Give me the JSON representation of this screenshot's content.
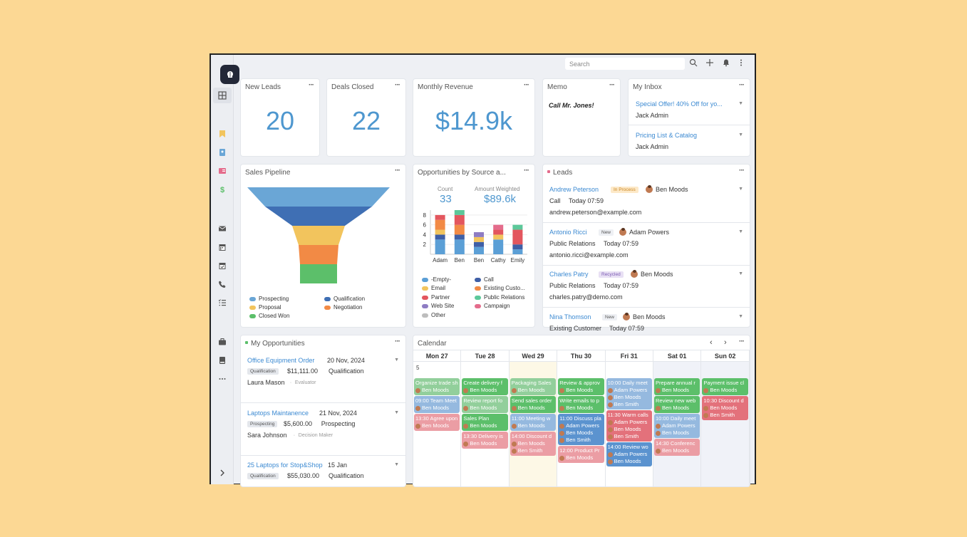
{
  "topbar": {
    "search_placeholder": "Search"
  },
  "kpi": {
    "new_leads": {
      "title": "New Leads",
      "value": "20"
    },
    "deals_closed": {
      "title": "Deals Closed",
      "value": "22"
    },
    "monthly_revenue": {
      "title": "Monthly Revenue",
      "value": "$14.9k"
    }
  },
  "memo": {
    "title": "Memo",
    "text": "Call Mr. Jones!"
  },
  "inbox": {
    "title": "My Inbox",
    "items": [
      {
        "subject": "Special Offer! 40% Off for yo...",
        "from": "Jack Admin"
      },
      {
        "subject": "Pricing List & Catalog",
        "from": "Jack Admin"
      }
    ]
  },
  "pipeline": {
    "title": "Sales Pipeline",
    "legend": [
      "Prospecting",
      "Qualification",
      "Proposal",
      "Negotiation",
      "Closed Won"
    ],
    "colors": [
      "#6aa6d6",
      "#3f6fb4",
      "#f2c45d",
      "#f28a45",
      "#5cbf6a"
    ],
    "widths": [
      100,
      75,
      37,
      28,
      26
    ]
  },
  "opps_source": {
    "title": "Opportunities by Source a...",
    "count_label": "Count",
    "count_value": "33",
    "amount_label": "Amount Weighted",
    "amount_value": "$89.6k",
    "legend": [
      "-Empty-",
      "Call",
      "Email",
      "Existing Custo...",
      "Partner",
      "Public Relations",
      "Web Site",
      "Campaign",
      "Other"
    ],
    "chart_data": {
      "type": "bar",
      "stacked": true,
      "categories": [
        "Adam",
        "Ben",
        "Ben",
        "Cathy",
        "Emily"
      ],
      "yticks": [
        "2",
        "4",
        "6",
        "8"
      ],
      "ylim": [
        0,
        9
      ],
      "series": [
        {
          "name": "-Empty-",
          "color": "#5b9fd6",
          "values": [
            3,
            3,
            1.5,
            3,
            1
          ]
        },
        {
          "name": "Call",
          "color": "#3f5fa6",
          "values": [
            1,
            1,
            1,
            0,
            1
          ]
        },
        {
          "name": "Email",
          "color": "#f2c45d",
          "values": [
            1,
            0,
            1,
            1,
            0
          ]
        },
        {
          "name": "Existing Custo...",
          "color": "#f28a45",
          "values": [
            2,
            2,
            0,
            0,
            0
          ]
        },
        {
          "name": "Partner",
          "color": "#e3565e",
          "values": [
            1,
            2,
            0,
            1,
            3
          ]
        },
        {
          "name": "Public Relations",
          "color": "#5cc89a",
          "values": [
            0,
            1,
            0,
            0,
            1
          ]
        },
        {
          "name": "Web Site",
          "color": "#8e7cc3",
          "values": [
            0,
            0,
            1,
            0,
            0
          ]
        },
        {
          "name": "Campaign",
          "color": "#e46c8c",
          "values": [
            0,
            0,
            0,
            1,
            0
          ]
        },
        {
          "name": "Other",
          "color": "#bdbdbd",
          "values": [
            0,
            0,
            0,
            0,
            0
          ]
        }
      ]
    }
  },
  "leads": {
    "title": "Leads",
    "items": [
      {
        "name": "Andrew Peterson",
        "status": "In Process",
        "owner": "Ben Moods",
        "detail": "Call",
        "date": "Today 07:59",
        "email": "andrew.peterson@example.com"
      },
      {
        "name": "Antonio Ricci",
        "status": "New",
        "owner": "Adam Powers",
        "detail": "Public Relations",
        "date": "Today 07:59",
        "email": "antonio.ricci@example.com"
      },
      {
        "name": "Charles Patry",
        "status": "Recycled",
        "owner": "Ben Moods",
        "detail": "Public Relations",
        "date": "Today 07:59",
        "email": "charles.patry@demo.com"
      },
      {
        "name": "Nina Thomson",
        "status": "New",
        "owner": "Ben Moods",
        "detail": "Existing Customer",
        "date": "Today 07:59",
        "email": ""
      }
    ]
  },
  "my_opps": {
    "title": "My Opportunities",
    "items": [
      {
        "name": "Office Equipment Order",
        "date": "20 Nov, 2024",
        "tag": "Qualification",
        "amount": "$11,111.00",
        "stage": "Qualification",
        "contact": "Laura Mason",
        "role": "Evaluator"
      },
      {
        "name": "Laptops Maintanence",
        "date": "21 Nov, 2024",
        "tag": "Prospecting",
        "amount": "$5,600.00",
        "stage": "Prospecting",
        "contact": "Sara Johnson",
        "role": "Decision Maker"
      },
      {
        "name": "25 Laptops for Stop&Shop",
        "date": "15 Jan",
        "tag": "Qualification",
        "amount": "$55,030.00",
        "stage": "Qualification",
        "contact": "",
        "role": ""
      }
    ]
  },
  "calendar": {
    "title": "Calendar",
    "week_number": "5",
    "days": [
      "Mon 27",
      "Tue 28",
      "Wed 29",
      "Thu 30",
      "Fri 31",
      "Sat 01",
      "Sun 02"
    ],
    "events": [
      [
        {
          "title": "Organize trade sh",
          "users": [
            "Ben Moods"
          ],
          "color": "green",
          "faded": true
        },
        {
          "title": "09:00  Team Meet",
          "users": [
            "Ben Moods"
          ],
          "color": "blue",
          "faded": true
        },
        {
          "title": "13:30  Agree upon",
          "users": [
            "Ben Moods"
          ],
          "color": "pink",
          "faded": true
        }
      ],
      [
        {
          "title": "Create delivery f",
          "users": [
            "Ben Moods"
          ],
          "color": "green"
        },
        {
          "title": "Review report fo",
          "users": [
            "Ben Moods"
          ],
          "color": "green",
          "faded": true
        },
        {
          "title": "Sales Plan",
          "users": [
            "Ben Moods"
          ],
          "color": "green"
        },
        {
          "title": "13:30  Delivery is",
          "users": [
            "Ben Moods"
          ],
          "color": "pink",
          "faded": true
        }
      ],
      [
        {
          "title": "Packaging Sales",
          "users": [
            "Ben Moods"
          ],
          "color": "green",
          "faded": true
        },
        {
          "title": "Send sales order",
          "users": [
            "Ben Moods"
          ],
          "color": "green"
        },
        {
          "title": "11:00  Meeting w",
          "users": [
            "Ben Moods"
          ],
          "color": "blue",
          "faded": true
        },
        {
          "title": "14:00  Discount d",
          "users": [
            "Ben Moods",
            "Ben Smith"
          ],
          "color": "pink",
          "faded": true
        }
      ],
      [
        {
          "title": "Review & approv",
          "users": [
            "Ben Moods"
          ],
          "color": "green"
        },
        {
          "title": "Write emails to p",
          "users": [
            "Ben Moods"
          ],
          "color": "green"
        },
        {
          "title": "11:00  Discuss pla",
          "users": [
            "Adam Powers",
            "Ben Moods",
            "Ben Smith"
          ],
          "color": "blue"
        },
        {
          "title": "12:00  Product Pr",
          "users": [
            "Ben Moods"
          ],
          "color": "pink",
          "faded": true
        }
      ],
      [
        {
          "title": "10:00  Daily meet",
          "users": [
            "Adam Powers",
            "Ben Moods",
            "Ben Smith"
          ],
          "color": "blue",
          "faded": true
        },
        {
          "title": "11:30  Warm calls",
          "users": [
            "Adam Powers",
            "Ben Moods",
            "Ben Smith"
          ],
          "color": "pink"
        },
        {
          "title": "14:00  Review wo",
          "users": [
            "Adam Powers",
            "Ben Moods"
          ],
          "color": "blue"
        }
      ],
      [
        {
          "title": "Prepare annual r",
          "users": [
            "Ben Moods"
          ],
          "color": "green"
        },
        {
          "title": "Review new web",
          "users": [
            "Ben Moods"
          ],
          "color": "green"
        },
        {
          "title": "10:00  Daily meet",
          "users": [
            "Adam Powers",
            "Ben Moods"
          ],
          "color": "blue",
          "faded": true
        },
        {
          "title": "14:30  Conferenc",
          "users": [
            "Ben Moods"
          ],
          "color": "pink",
          "faded": true
        }
      ],
      [
        {
          "title": "Payment issue cl",
          "users": [
            "Ben Moods"
          ],
          "color": "green"
        },
        {
          "title": "10:30  Discount d",
          "users": [
            "Ben Moods",
            "Ben Smith"
          ],
          "color": "pink"
        }
      ]
    ]
  }
}
